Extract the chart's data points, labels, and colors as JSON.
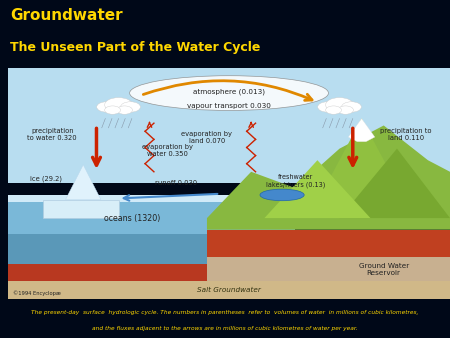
{
  "title_line1": "Groundwater",
  "title_line2": "The Unseen Part of the Water Cycle",
  "title_color": "#FFD700",
  "title_bg_top": "#000818",
  "title_bg_bottom": "#001535",
  "diagram_border": "#4466aa",
  "diagram_bg": "#aad4f0",
  "footer_bg": "#1a3a8a",
  "footer_text_line1": "The present-day  surface  hydrologic cycle. The numbers in parentheses  refer to  volumes of water  in millions of cubic kilometres,",
  "footer_text_line2": "and the fluxes adjacent to the arrows are in millions of cubic kilometres of water per year.",
  "footer_text_color": "#FFD700",
  "ocean_color": "#7ab8d8",
  "ocean_top_color": "#c8e4f4",
  "land_green": "#88b840",
  "land_brown_red": "#c04820",
  "land_sand": "#c8a868",
  "mountain_green": "#90c040",
  "mountain_shadow": "#608828",
  "snow_color": "#f0f0f0",
  "ice_color": "#d8eef8",
  "atmosphere_box": "#ddeeff",
  "arrow_red": "#cc2200",
  "arrow_orange": "#e08800",
  "arrow_blue": "#4488cc",
  "arrow_red_wavy": "#cc2200",
  "label_color": "#222222",
  "copyright_color": "#333333",
  "salt_gw_color": "#d0b888",
  "ground_reservoir_color": "#c8b090",
  "title_font1": 11,
  "title_font2": 9,
  "sf": 5.2
}
